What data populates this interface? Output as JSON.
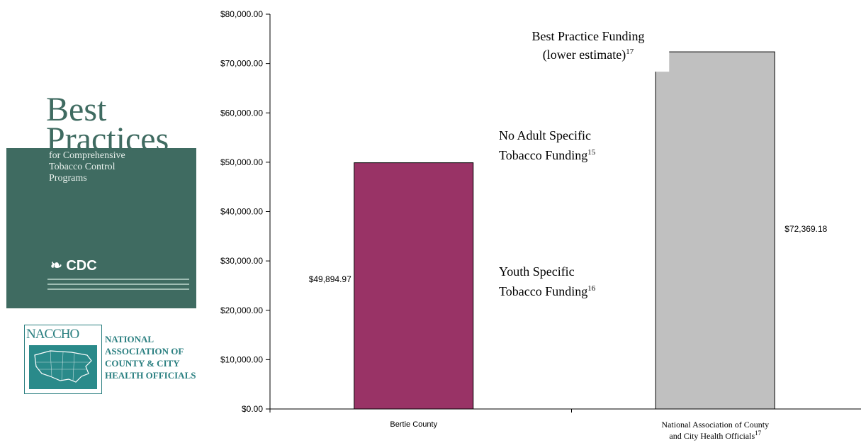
{
  "chart_data": {
    "type": "bar",
    "categories": [
      "Bertie County",
      "National Association of County and City Health Officials"
    ],
    "category_superscripts": [
      "",
      "17"
    ],
    "values": [
      49894.97,
      72369.18
    ],
    "data_labels": [
      "$49,894.97",
      "$72,369.18"
    ],
    "ylim": [
      0,
      80000
    ],
    "yticks": [
      0,
      10000,
      20000,
      30000,
      40000,
      50000,
      60000,
      70000,
      80000
    ],
    "ytick_labels": [
      "$0.00",
      "$10,000.00",
      "$20,000.00",
      "$30,000.00",
      "$40,000.00",
      "$50,000.00",
      "$60,000.00",
      "$70,000.00",
      "$80,000.00"
    ],
    "bar_colors": [
      "#993366",
      "#c0c0c0"
    ],
    "grid": false,
    "legend": "none",
    "annotations": [
      {
        "lines": [
          "No Adult Specific",
          "Tobacco Funding"
        ],
        "superscript": "15"
      },
      {
        "lines": [
          "Youth Specific",
          "Tobacco Funding"
        ],
        "superscript": "16"
      },
      {
        "lines": [
          "Best Practice Funding",
          "(lower estimate)"
        ],
        "superscript": "17"
      }
    ]
  },
  "logos": {
    "best_practices": {
      "title_line1": "Best",
      "title_line2": "Practices",
      "subtitle": [
        "for Comprehensive",
        "Tobacco Control",
        "Programs"
      ],
      "brand": "CDC",
      "colors": {
        "panel": "#3f6b61"
      }
    },
    "naccho": {
      "acronym": "NACCHO",
      "name_lines": [
        "NATIONAL",
        "ASSOCIATION OF",
        "COUNTY & CITY",
        "HEALTH OFFICIALS"
      ],
      "colors": {
        "brand": "#2a7f80"
      }
    }
  }
}
